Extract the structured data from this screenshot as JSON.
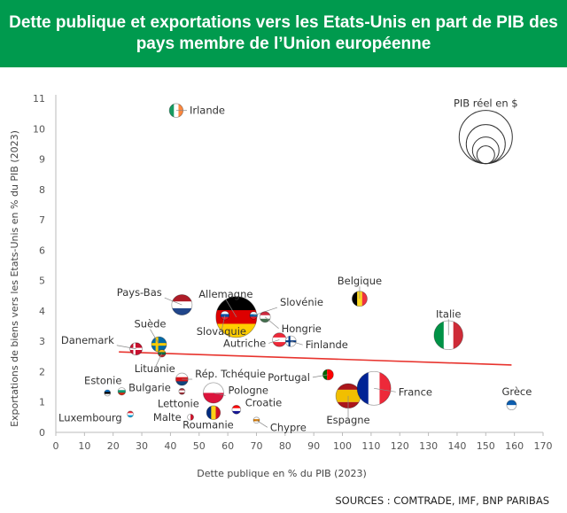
{
  "header": {
    "title": "Dette publique et exportations vers les Etats-Unis en part de PIB des pays membre de l’Union européenne"
  },
  "source": "SOURCES : COMTRADE, IMF, BNP PARIBAS",
  "colors": {
    "header_bg": "#009a4e",
    "trend_line": "#e8342e",
    "axis": "#bbbbbb"
  },
  "chart_data": {
    "type": "scatter",
    "xlabel": "Dette publique en % du PIB (2023)",
    "ylabel": "Exportations de biens vers les Etats-Unis en % du PIB (2023)",
    "xlim": [
      0,
      170
    ],
    "ylim": [
      0,
      11
    ],
    "xticks": [
      0,
      10,
      20,
      30,
      40,
      50,
      60,
      70,
      80,
      90,
      100,
      110,
      120,
      130,
      140,
      150,
      160,
      170
    ],
    "yticks": [
      0,
      1,
      2,
      3,
      4,
      5,
      6,
      7,
      8,
      9,
      10,
      11
    ],
    "grid": false,
    "size_legend": {
      "label": "PIB réel en $"
    },
    "trend_line": {
      "x": [
        22,
        159
      ],
      "y": [
        2.65,
        2.22
      ]
    },
    "points": [
      {
        "name": "Irlande",
        "x": 42,
        "y": 10.6,
        "size": 0.5,
        "flag": [
          "#169b62",
          "#ffffff",
          "#ff883e"
        ]
      },
      {
        "name": "Pays-Bas",
        "x": 44,
        "y": 4.2,
        "size": 1.1,
        "flag": [
          "#ae1c28",
          "#ffffff",
          "#21468b"
        ],
        "flag_dir": "h"
      },
      {
        "name": "Allemagne",
        "x": 63,
        "y": 3.8,
        "size": 4.4,
        "flag": [
          "#000000",
          "#dd0000",
          "#ffce00"
        ],
        "flag_dir": "h"
      },
      {
        "name": "Slovénie",
        "x": 69,
        "y": 3.85,
        "size": 0.15,
        "flag": [
          "#ffffff",
          "#005da4",
          "#ed1c24"
        ],
        "flag_dir": "h"
      },
      {
        "name": "Slovaquie",
        "x": 59,
        "y": 3.85,
        "size": 0.2,
        "flag": [
          "#ffffff",
          "#0b4ea2",
          "#ee1c25"
        ],
        "flag_dir": "h"
      },
      {
        "name": "Belgique",
        "x": 106,
        "y": 4.4,
        "size": 0.6,
        "flag": [
          "#000000",
          "#fdda24",
          "#ef3340"
        ]
      },
      {
        "name": "Hongrie",
        "x": 73,
        "y": 3.8,
        "size": 0.3,
        "flag": [
          "#cd2a3e",
          "#ffffff",
          "#436f4d"
        ],
        "flag_dir": "h"
      },
      {
        "name": "Italie",
        "x": 137,
        "y": 3.2,
        "size": 2.2,
        "flag": [
          "#009246",
          "#ffffff",
          "#ce2b37"
        ]
      },
      {
        "name": "Suède",
        "x": 36,
        "y": 2.9,
        "size": 0.6,
        "flag": [
          "#006aa7",
          "#fecc00"
        ],
        "flag_dir": "cross"
      },
      {
        "name": "Danemark",
        "x": 28,
        "y": 2.75,
        "size": 0.4,
        "flag": [
          "#c8102e",
          "#ffffff"
        ],
        "flag_dir": "cross"
      },
      {
        "name": "Lituanie",
        "x": 37,
        "y": 2.6,
        "size": 0.15,
        "flag": [
          "#fdb913",
          "#006a44",
          "#c1272d"
        ],
        "flag_dir": "h"
      },
      {
        "name": "Autriche",
        "x": 78,
        "y": 3.05,
        "size": 0.5,
        "flag": [
          "#ed2939",
          "#ffffff",
          "#ed2939"
        ],
        "flag_dir": "h"
      },
      {
        "name": "Finlande",
        "x": 82,
        "y": 3.0,
        "size": 0.3,
        "flag": [
          "#ffffff",
          "#003580"
        ],
        "flag_dir": "cross"
      },
      {
        "name": "Portugal",
        "x": 95,
        "y": 1.9,
        "size": 0.3,
        "flag": [
          "#006600",
          "#ff0000"
        ],
        "flag_dir": "pt"
      },
      {
        "name": "Estonie",
        "x": 18,
        "y": 1.3,
        "size": 0.1,
        "flag": [
          "#0072ce",
          "#000000",
          "#ffffff"
        ],
        "flag_dir": "h"
      },
      {
        "name": "Bulgarie",
        "x": 23,
        "y": 1.35,
        "size": 0.15,
        "flag": [
          "#ffffff",
          "#00966e",
          "#d62612"
        ],
        "flag_dir": "h"
      },
      {
        "name": "Rép. Tchéquie",
        "x": 44,
        "y": 1.75,
        "size": 0.4,
        "flag": [
          "#ffffff",
          "#d7141a",
          "#11457e"
        ],
        "flag_dir": "h"
      },
      {
        "name": "Lettonie",
        "x": 44,
        "y": 1.35,
        "size": 0.1,
        "flag": [
          "#9e3039",
          "#ffffff",
          "#9e3039"
        ],
        "flag_dir": "h"
      },
      {
        "name": "Pologne",
        "x": 55,
        "y": 1.3,
        "size": 1.1,
        "flag": [
          "#ffffff",
          "#dc143c"
        ],
        "flag_dir": "h"
      },
      {
        "name": "Croatie",
        "x": 63,
        "y": 0.75,
        "size": 0.2,
        "flag": [
          "#ff0000",
          "#ffffff",
          "#171796"
        ],
        "flag_dir": "h"
      },
      {
        "name": "Luxembourg",
        "x": 26,
        "y": 0.6,
        "size": 0.1,
        "flag": [
          "#ed2939",
          "#ffffff",
          "#00a1de"
        ],
        "flag_dir": "h"
      },
      {
        "name": "Malte",
        "x": 47,
        "y": 0.5,
        "size": 0.1,
        "flag": [
          "#ffffff",
          "#cf142b"
        ]
      },
      {
        "name": "Roumanie",
        "x": 55,
        "y": 0.65,
        "size": 0.5,
        "flag": [
          "#002b7f",
          "#fcd116",
          "#ce1126"
        ]
      },
      {
        "name": "Chypre",
        "x": 70,
        "y": 0.4,
        "size": 0.1,
        "flag": [
          "#ffffff",
          "#d57800",
          "#ffffff"
        ],
        "flag_dir": "h"
      },
      {
        "name": "Espagne",
        "x": 102,
        "y": 1.2,
        "size": 1.6,
        "flag": [
          "#aa151b",
          "#f1bf00",
          "#aa151b"
        ],
        "flag_dir": "es"
      },
      {
        "name": "France",
        "x": 111,
        "y": 1.45,
        "size": 3.0,
        "flag": [
          "#002395",
          "#ffffff",
          "#ed2939"
        ]
      },
      {
        "name": "Grèce",
        "x": 159,
        "y": 0.9,
        "size": 0.25,
        "flag": [
          "#0d5eaf",
          "#ffffff"
        ],
        "flag_dir": "h"
      }
    ]
  }
}
